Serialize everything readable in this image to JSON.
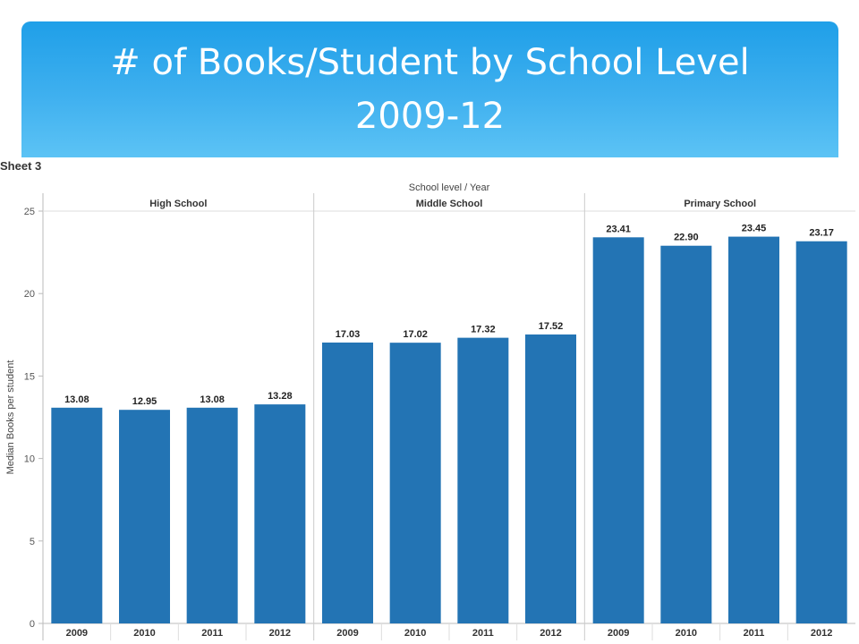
{
  "title": {
    "line1": "# of Books/Student by School Level",
    "line2": "2009-12"
  },
  "sheet_label": "Sheet 3",
  "chart_data": {
    "type": "bar",
    "column_header": "School level  /  Year",
    "ylabel": "Median Books per student",
    "ylim": [
      0,
      25
    ],
    "yticks": [
      0,
      5,
      10,
      15,
      20,
      25
    ],
    "bar_color": "#2374b4",
    "groups": [
      {
        "name": "High School",
        "categories": [
          "2009",
          "2010",
          "2011",
          "2012"
        ],
        "values": [
          13.08,
          12.95,
          13.08,
          13.28
        ],
        "labels": [
          "13.08",
          "12.95",
          "13.08",
          "13.28"
        ]
      },
      {
        "name": "Middle School",
        "categories": [
          "2009",
          "2010",
          "2011",
          "2012"
        ],
        "values": [
          17.03,
          17.02,
          17.32,
          17.52
        ],
        "labels": [
          "17.03",
          "17.02",
          "17.32",
          "17.52"
        ]
      },
      {
        "name": "Primary School",
        "categories": [
          "2009",
          "2010",
          "2011",
          "2012"
        ],
        "values": [
          23.41,
          22.9,
          23.45,
          23.17
        ],
        "labels": [
          "23.41",
          "22.90",
          "23.45",
          "23.17"
        ]
      }
    ]
  }
}
